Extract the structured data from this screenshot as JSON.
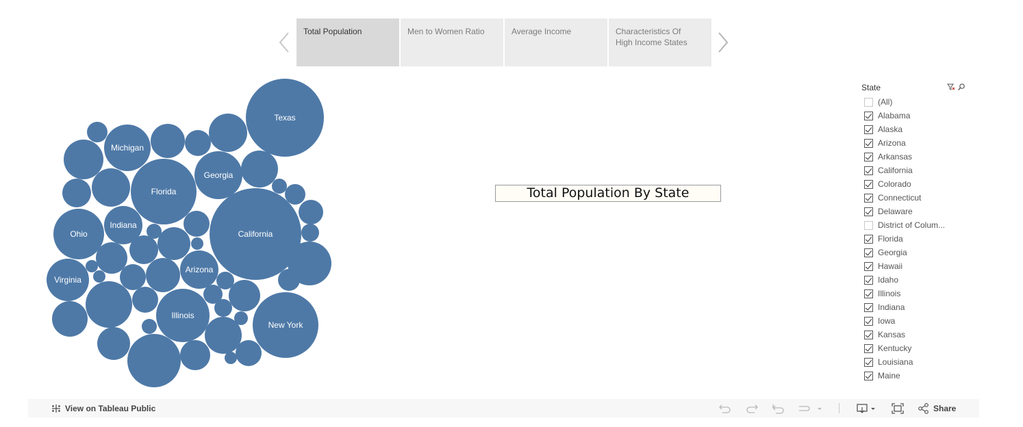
{
  "story": {
    "tabs": [
      "Total  Population",
      "Men to Women Ratio",
      "Average Income",
      "Characteristics Of\nHigh Income States"
    ],
    "active_index": 0,
    "prev_icon": "chevron-left-icon",
    "next_icon": "chevron-right-icon"
  },
  "chart_data": {
    "type": "bubble",
    "title": "Total Population By State",
    "color": "#4e79a7",
    "bubbles": [
      {
        "label": "Texas"
      },
      {
        "label": "California"
      },
      {
        "label": "Florida"
      },
      {
        "label": "New York"
      },
      {
        "label": "Illinois"
      },
      {
        "label": "Ohio"
      },
      {
        "label": "Georgia"
      },
      {
        "label": "Michigan"
      },
      {
        "label": "Virginia"
      },
      {
        "label": "Arizona"
      },
      {
        "label": "Indiana"
      },
      {
        "label": ""
      },
      {
        "label": ""
      },
      {
        "label": ""
      },
      {
        "label": ""
      },
      {
        "label": ""
      },
      {
        "label": ""
      },
      {
        "label": ""
      },
      {
        "label": ""
      },
      {
        "label": ""
      },
      {
        "label": ""
      },
      {
        "label": ""
      },
      {
        "label": ""
      },
      {
        "label": ""
      },
      {
        "label": ""
      },
      {
        "label": ""
      },
      {
        "label": ""
      },
      {
        "label": ""
      },
      {
        "label": ""
      },
      {
        "label": ""
      },
      {
        "label": ""
      },
      {
        "label": ""
      },
      {
        "label": ""
      },
      {
        "label": ""
      },
      {
        "label": ""
      },
      {
        "label": ""
      },
      {
        "label": ""
      },
      {
        "label": ""
      },
      {
        "label": ""
      },
      {
        "label": ""
      },
      {
        "label": ""
      },
      {
        "label": ""
      },
      {
        "label": ""
      },
      {
        "label": ""
      },
      {
        "label": ""
      },
      {
        "label": ""
      },
      {
        "label": ""
      },
      {
        "label": ""
      },
      {
        "label": ""
      },
      {
        "label": ""
      }
    ]
  },
  "filter": {
    "title": "State",
    "clear_icon": "clear-filter-icon",
    "search_icon": "search-icon",
    "items": [
      {
        "label": "(All)",
        "checked": false
      },
      {
        "label": "Alabama",
        "checked": true
      },
      {
        "label": "Alaska",
        "checked": true
      },
      {
        "label": "Arizona",
        "checked": true
      },
      {
        "label": "Arkansas",
        "checked": true
      },
      {
        "label": "California",
        "checked": true
      },
      {
        "label": "Colorado",
        "checked": true
      },
      {
        "label": "Connecticut",
        "checked": true
      },
      {
        "label": "Delaware",
        "checked": true
      },
      {
        "label": "District of Colum...",
        "checked": false
      },
      {
        "label": "Florida",
        "checked": true
      },
      {
        "label": "Georgia",
        "checked": true
      },
      {
        "label": "Hawaii",
        "checked": true
      },
      {
        "label": "Idaho",
        "checked": true
      },
      {
        "label": "Illinois",
        "checked": true
      },
      {
        "label": "Indiana",
        "checked": true
      },
      {
        "label": "Iowa",
        "checked": true
      },
      {
        "label": "Kansas",
        "checked": true
      },
      {
        "label": "Kentucky",
        "checked": true
      },
      {
        "label": "Louisiana",
        "checked": true
      },
      {
        "label": "Maine",
        "checked": true
      }
    ]
  },
  "toolbar": {
    "view_on_tableau": "View on Tableau Public",
    "share_label": "Share",
    "icons": [
      "tableau-logo-icon",
      "undo-icon",
      "redo-icon",
      "revert-icon",
      "pause-icon",
      "download-icon",
      "fullscreen-icon",
      "share-icon"
    ]
  }
}
